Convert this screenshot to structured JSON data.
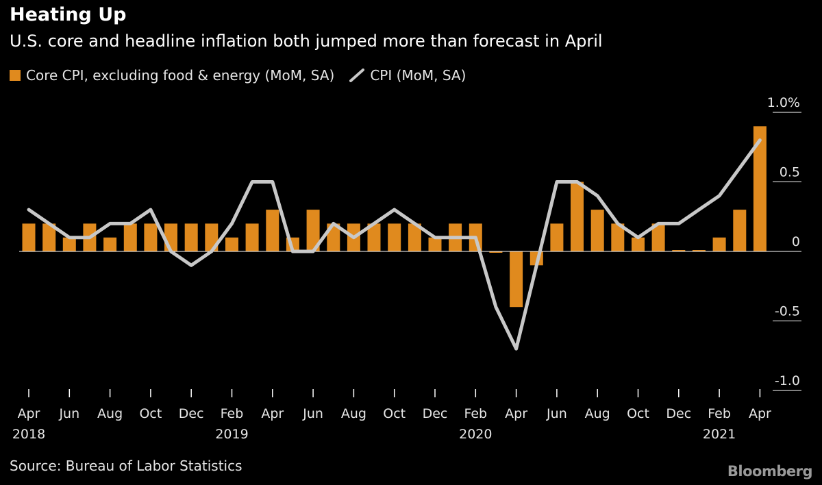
{
  "header": {
    "title": "Heating Up",
    "subtitle": "U.S. core and headline inflation both jumped more than forecast in April"
  },
  "legend": {
    "core_label": "Core CPI, excluding food & energy (MoM, SA)",
    "cpi_label": "CPI (MoM, SA)"
  },
  "footer": {
    "source": "Source: Bureau of Labor Statistics",
    "logo": "Bloomberg"
  },
  "colors": {
    "core": "#e08a1e",
    "cpi": "#c8c8c8",
    "background": "#000000",
    "text": "#ffffff"
  },
  "chart_data": {
    "type": "bar",
    "title": "Heating Up",
    "subtitle": "U.S. core and headline inflation both jumped more than forecast in April",
    "x": [
      "2018-04",
      "2018-05",
      "2018-06",
      "2018-07",
      "2018-08",
      "2018-09",
      "2018-10",
      "2018-11",
      "2018-12",
      "2019-01",
      "2019-02",
      "2019-03",
      "2019-04",
      "2019-05",
      "2019-06",
      "2019-07",
      "2019-08",
      "2019-09",
      "2019-10",
      "2019-11",
      "2019-12",
      "2020-01",
      "2020-02",
      "2020-03",
      "2020-04",
      "2020-05",
      "2020-06",
      "2020-07",
      "2020-08",
      "2020-09",
      "2020-10",
      "2020-11",
      "2020-12",
      "2021-01",
      "2021-02",
      "2021-03",
      "2021-04"
    ],
    "series": [
      {
        "name": "Core CPI, excluding food & energy (MoM, SA)",
        "type": "bar",
        "values": [
          0.2,
          0.2,
          0.1,
          0.2,
          0.1,
          0.2,
          0.2,
          0.2,
          0.2,
          0.2,
          0.1,
          0.2,
          0.3,
          0.1,
          0.3,
          0.2,
          0.2,
          0.2,
          0.2,
          0.2,
          0.1,
          0.2,
          0.2,
          -0.01,
          -0.4,
          -0.1,
          0.2,
          0.5,
          0.3,
          0.2,
          0.1,
          0.2,
          0.01,
          0.01,
          0.1,
          0.3,
          0.9
        ]
      },
      {
        "name": "CPI (MoM, SA)",
        "type": "line",
        "values": [
          0.3,
          0.2,
          0.1,
          0.1,
          0.2,
          0.2,
          0.3,
          0.0,
          -0.1,
          0.0,
          0.2,
          0.5,
          0.5,
          0.0,
          0.0,
          0.2,
          0.1,
          0.2,
          0.3,
          0.2,
          0.1,
          0.1,
          0.1,
          -0.4,
          -0.7,
          -0.1,
          0.5,
          0.5,
          0.4,
          0.2,
          0.1,
          0.2,
          0.2,
          0.3,
          0.4,
          0.6,
          0.8
        ]
      }
    ],
    "x_ticks": [
      {
        "index": 0,
        "label": "Apr",
        "year": "2018"
      },
      {
        "index": 2,
        "label": "Jun"
      },
      {
        "index": 4,
        "label": "Aug"
      },
      {
        "index": 6,
        "label": "Oct"
      },
      {
        "index": 8,
        "label": "Dec"
      },
      {
        "index": 10,
        "label": "Feb",
        "year": "2019"
      },
      {
        "index": 12,
        "label": "Apr"
      },
      {
        "index": 14,
        "label": "Jun"
      },
      {
        "index": 16,
        "label": "Aug"
      },
      {
        "index": 18,
        "label": "Oct"
      },
      {
        "index": 20,
        "label": "Dec"
      },
      {
        "index": 22,
        "label": "Feb",
        "year": "2020"
      },
      {
        "index": 24,
        "label": "Apr"
      },
      {
        "index": 26,
        "label": "Jun"
      },
      {
        "index": 28,
        "label": "Aug"
      },
      {
        "index": 30,
        "label": "Oct"
      },
      {
        "index": 32,
        "label": "Dec"
      },
      {
        "index": 34,
        "label": "Feb",
        "year": "2021"
      },
      {
        "index": 36,
        "label": "Apr"
      }
    ],
    "y_ticks": [
      {
        "value": 1.0,
        "label": "1.0%"
      },
      {
        "value": 0.5,
        "label": "0.5"
      },
      {
        "value": 0,
        "label": "0"
      },
      {
        "value": -0.5,
        "label": "-0.5"
      },
      {
        "value": -1.0,
        "label": "-1.0"
      }
    ],
    "ylim": [
      -1.0,
      1.0
    ],
    "grid": false,
    "legend_position": "top-left",
    "xlabel": "",
    "ylabel": ""
  }
}
